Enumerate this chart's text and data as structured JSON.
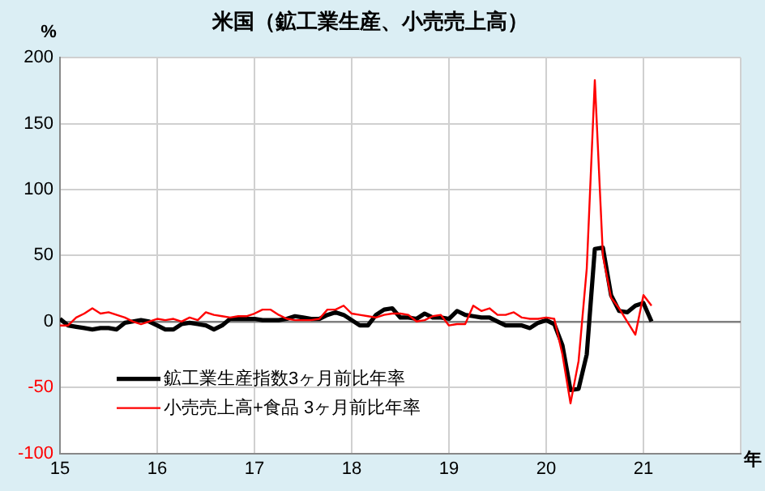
{
  "chart_data": {
    "type": "line",
    "title": "米国（鉱工業生産、小売売上高）",
    "ylabel": "%",
    "xlabel": "年",
    "xlim": [
      15,
      22
    ],
    "xticks": [
      15,
      16,
      17,
      18,
      19,
      20,
      21,
      {
        "value": 22,
        "label": null
      }
    ],
    "ylim": [
      -100,
      200
    ],
    "yticks": [
      -100,
      -50,
      0,
      50,
      100,
      150,
      200
    ],
    "grid": true,
    "legend": "bottom left",
    "marker": "none",
    "line_style": "solid",
    "x": [
      15,
      15.083,
      15.167,
      15.25,
      15.333,
      15.417,
      15.5,
      15.583,
      15.667,
      15.75,
      15.833,
      15.917,
      16,
      16.083,
      16.167,
      16.25,
      16.333,
      16.417,
      16.5,
      16.583,
      16.667,
      16.75,
      16.833,
      16.917,
      17,
      17.083,
      17.167,
      17.25,
      17.333,
      17.417,
      17.5,
      17.583,
      17.667,
      17.75,
      17.833,
      17.917,
      18,
      18.083,
      18.167,
      18.25,
      18.333,
      18.417,
      18.5,
      18.583,
      18.667,
      18.75,
      18.833,
      18.917,
      19,
      19.083,
      19.167,
      19.25,
      19.333,
      19.417,
      19.5,
      19.583,
      19.667,
      19.75,
      19.833,
      19.917,
      20,
      20.083,
      20.167,
      20.25,
      20.333,
      20.417,
      20.5,
      20.583,
      20.667,
      20.75,
      20.833,
      20.917,
      21,
      21.083
    ],
    "series": [
      {
        "name": "鉱工業生産指数3ヶ月前比年率",
        "color": "#000000",
        "values": [
          2,
          -3,
          -4,
          -5,
          -6,
          -5,
          -5,
          -6,
          -1,
          0,
          1,
          0,
          -3,
          -6,
          -6,
          -2,
          -1,
          -2,
          -3,
          -6,
          -3,
          2,
          2,
          2,
          2,
          1,
          1,
          1,
          2,
          4,
          3,
          2,
          2,
          5,
          7,
          5,
          1,
          -3,
          -3,
          5,
          9,
          10,
          3,
          3,
          2,
          6,
          3,
          3,
          2,
          8,
          5,
          4,
          3,
          3,
          0,
          -3,
          -3,
          -3,
          -5,
          -1,
          1,
          -2,
          -18,
          -52,
          -51,
          -25,
          55,
          56,
          20,
          8,
          7,
          12,
          14,
          0
        ]
      },
      {
        "name": "小売売上高+食品 3ヶ月前比年率",
        "color": "#ff0000",
        "values": [
          -3,
          -3,
          3,
          6,
          10,
          6,
          7,
          5,
          3,
          0,
          -2,
          0,
          2,
          1,
          2,
          0,
          3,
          1,
          7,
          5,
          4,
          3,
          4,
          4,
          6,
          9,
          9,
          5,
          2,
          1,
          1,
          1,
          2,
          9,
          9,
          12,
          6,
          5,
          4,
          3,
          5,
          6,
          6,
          5,
          0,
          1,
          4,
          5,
          -3,
          -2,
          -2,
          12,
          8,
          10,
          5,
          5,
          7,
          3,
          2,
          2,
          3,
          2,
          -25,
          -62,
          -30,
          40,
          183,
          50,
          18,
          10,
          0,
          -10,
          20,
          12
        ]
      }
    ]
  }
}
